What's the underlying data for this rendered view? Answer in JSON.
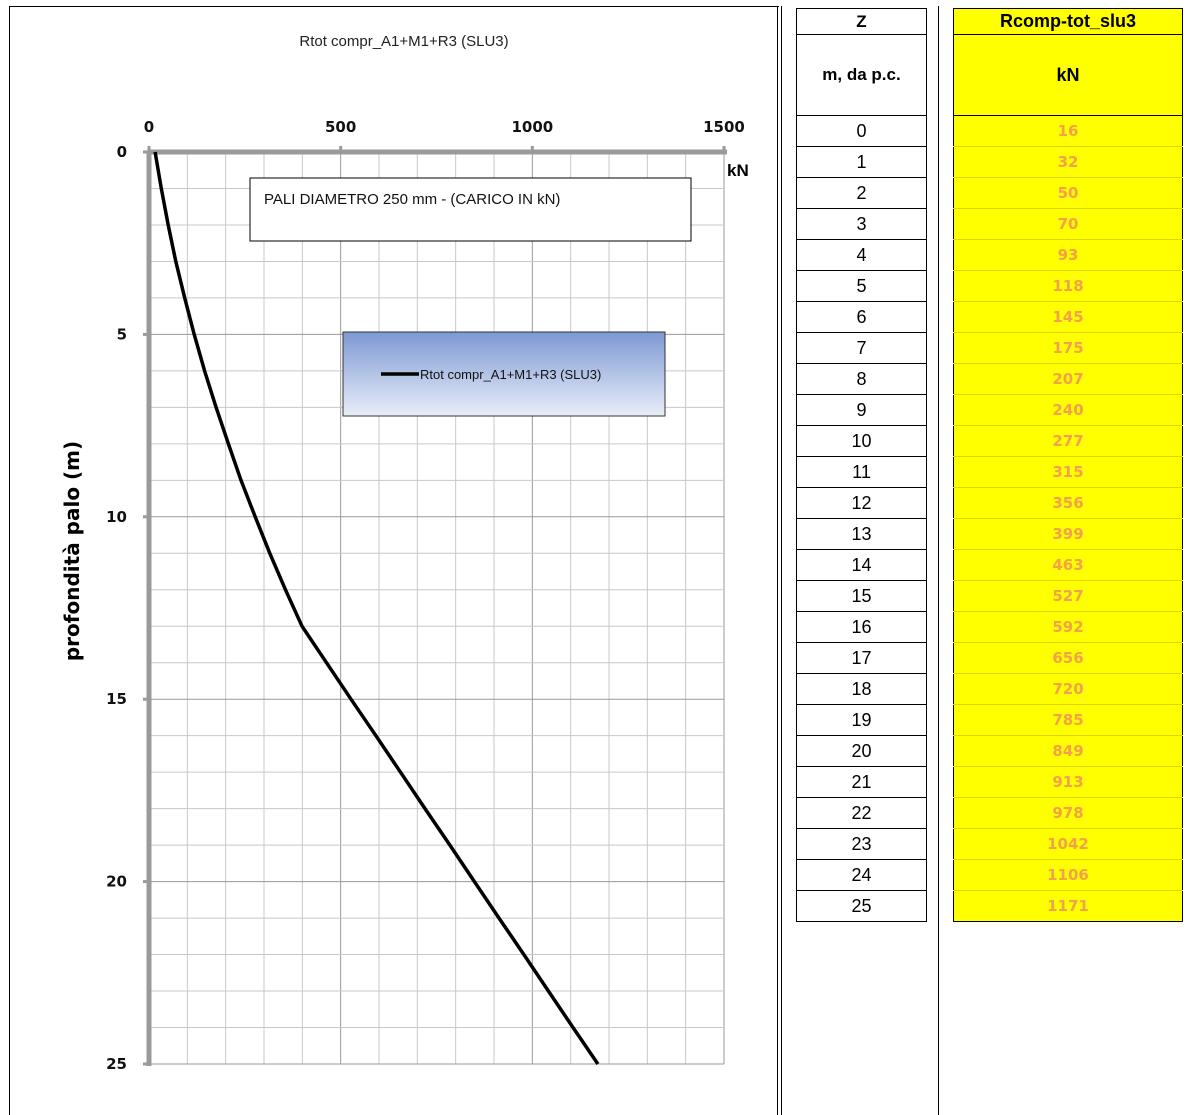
{
  "chart_data": {
    "type": "line",
    "title": "Rtot compr_A1+M1+R3 (SLU3)",
    "annotation": "PALI  DIAMETRO 250 mm - (CARICO IN kN)",
    "xlabel": "kN",
    "ylabel": "profondità palo (m)",
    "xlim": [
      0,
      1500
    ],
    "ylim": [
      0,
      25
    ],
    "y_inverted": true,
    "x_axis_position": "top",
    "x_ticks": [
      0,
      500,
      1000,
      1500
    ],
    "y_ticks": [
      0,
      5,
      10,
      15,
      20,
      25
    ],
    "grid": true,
    "legend_position": "center",
    "series": [
      {
        "name": "Rtot compr_A1+M1+R3 (SLU3)",
        "color": "#000000",
        "x": [
          16,
          32,
          50,
          70,
          93,
          118,
          145,
          175,
          207,
          240,
          277,
          315,
          356,
          399,
          463,
          527,
          592,
          656,
          720,
          785,
          849,
          913,
          978,
          1042,
          1106,
          1171
        ],
        "y": [
          0,
          1,
          2,
          3,
          4,
          5,
          6,
          7,
          8,
          9,
          10,
          11,
          12,
          13,
          14,
          15,
          16,
          17,
          18,
          19,
          20,
          21,
          22,
          23,
          24,
          25
        ]
      }
    ]
  },
  "table_z": {
    "header": "Z",
    "unit": "m, da p.c.",
    "values": [
      "0",
      "1",
      "2",
      "3",
      "4",
      "5",
      "6",
      "7",
      "8",
      "9",
      "10",
      "11",
      "12",
      "13",
      "14",
      "15",
      "16",
      "17",
      "18",
      "19",
      "20",
      "21",
      "22",
      "23",
      "24",
      "25"
    ]
  },
  "table_r": {
    "header": "Rcomp-tot_slu3",
    "unit": "kN",
    "values": [
      "16",
      "32",
      "50",
      "70",
      "93",
      "118",
      "145",
      "175",
      "207",
      "240",
      "277",
      "315",
      "356",
      "399",
      "463",
      "527",
      "592",
      "656",
      "720",
      "785",
      "849",
      "913",
      "978",
      "1042",
      "1106",
      "1171"
    ]
  },
  "colors": {
    "highlight": "#ffff00",
    "value_text": "#f5a04a",
    "grid": "#c8c8c8",
    "axis": "#9a9a9a"
  }
}
